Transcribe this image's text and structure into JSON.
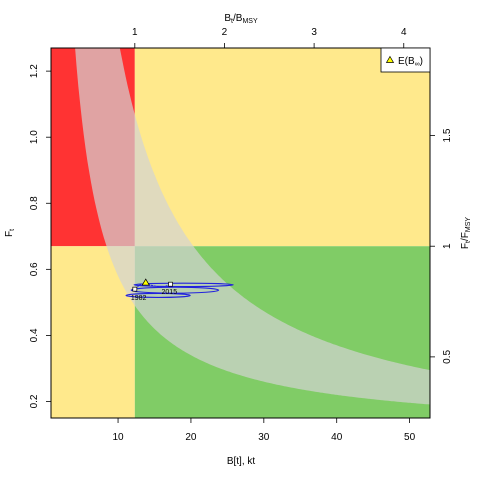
{
  "chart_data": {
    "type": "kobe-phase-plot",
    "colors": {
      "overfished_overfishing": "#ff3333",
      "caution": "#ffe98c",
      "healthy": "#80cc66",
      "envelope": "#d3d3d3",
      "trajectory": "#2222dd",
      "frame": "#000000"
    },
    "x_axis": {
      "label": "B[t], kt",
      "range": [
        0.8,
        52.8
      ],
      "ticks": [
        10,
        20,
        30,
        40,
        50
      ],
      "tick_labels": [
        "10",
        "20",
        "30",
        "40",
        "50"
      ]
    },
    "y_axis": {
      "label": "F",
      "label_sub": "t",
      "range": [
        0.15,
        1.27
      ],
      "ticks": [
        0.2,
        0.4,
        0.6,
        0.8,
        1.0,
        1.2
      ],
      "tick_labels": [
        "0.2",
        "0.4",
        "0.6",
        "0.8",
        "1.0",
        "1.2"
      ]
    },
    "top_axis": {
      "label_main": "B",
      "label_sub1": "t",
      "label_sep": "/B",
      "label_sub2": "MSY",
      "ticks_data": [
        12.3,
        24.6,
        36.9,
        49.2
      ],
      "tick_labels": [
        "1",
        "2",
        "3",
        "4"
      ]
    },
    "right_axis": {
      "label_main": "F",
      "label_sub1": "t",
      "label_sep": "/F",
      "label_sub2": "MSY",
      "ticks_data": [
        0.335,
        0.67,
        1.005
      ],
      "tick_labels": [
        "0.5",
        "1",
        "1.5"
      ]
    },
    "reference_points": {
      "Bmsy": 12.3,
      "Fmsy": 0.67
    },
    "envelope": {
      "upper_k": 12.4,
      "upper_c": 0.06,
      "lower_k": 4.8,
      "lower_c": 0.1
    },
    "trajectory": {
      "points": [
        {
          "B": 12.3,
          "F": 0.54,
          "label": "1982"
        },
        {
          "B": 13.0,
          "F": 0.553
        },
        {
          "B": 14.0,
          "F": 0.555
        },
        {
          "B": 15.0,
          "F": 0.55
        },
        {
          "B": 16.0,
          "F": 0.545
        },
        {
          "B": 17.2,
          "F": 0.555,
          "label": "2015"
        }
      ],
      "labels": [
        "1982",
        "2015"
      ],
      "ellipses": [
        {
          "cx": 19.0,
          "cy": 0.553,
          "rx": 6.8,
          "ry": 0.005
        },
        {
          "cx": 17.8,
          "cy": 0.537,
          "rx": 6.0,
          "ry": 0.009
        },
        {
          "cx": 15.5,
          "cy": 0.521,
          "rx": 4.4,
          "ry": 0.006
        }
      ]
    },
    "expected_point": {
      "B": 13.8,
      "F": 0.56
    },
    "legend": {
      "label": "E(B",
      "label_sub": "∞",
      "label_end": ")",
      "placement": "top-right"
    }
  }
}
